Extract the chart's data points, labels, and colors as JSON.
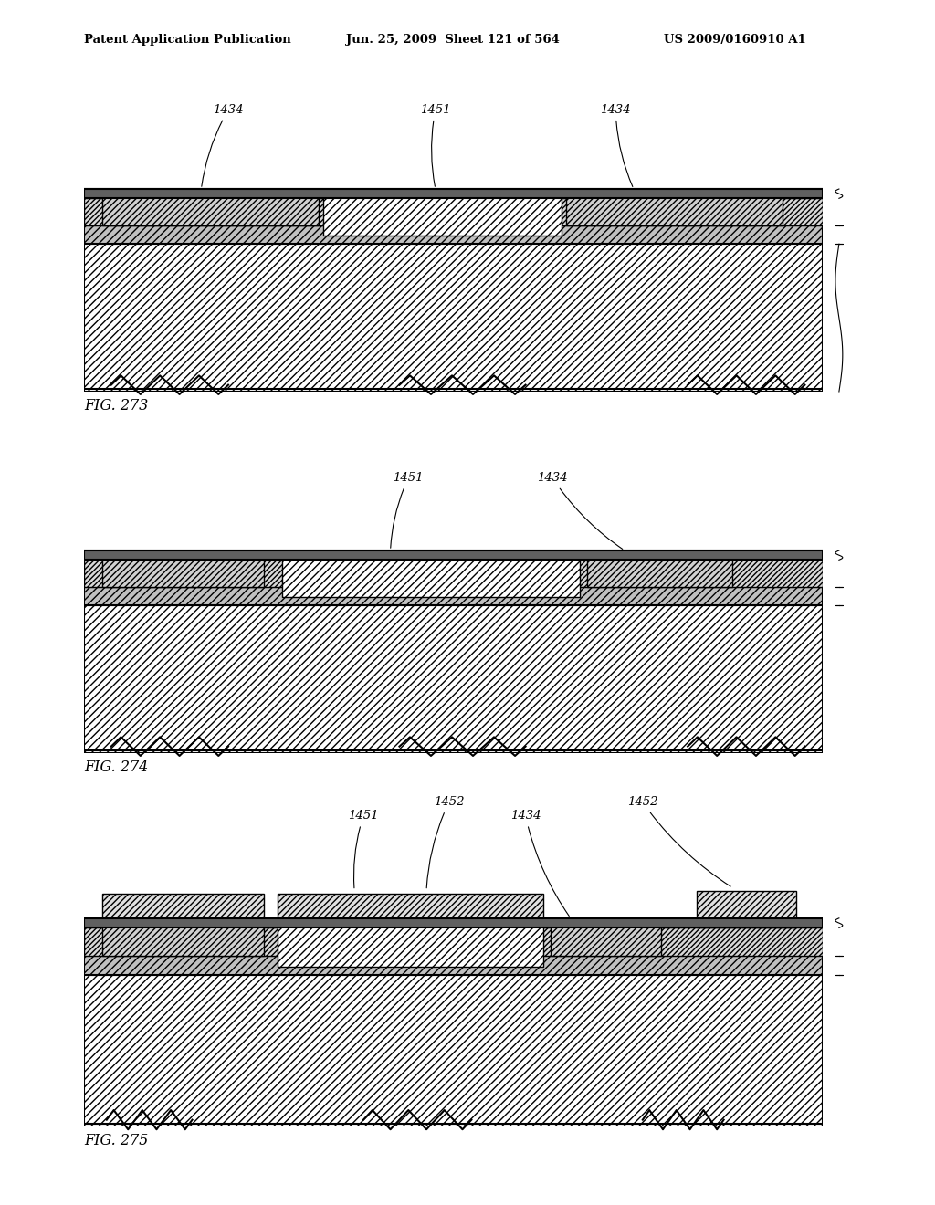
{
  "header_left": "Patent Application Publication",
  "header_mid": "Jun. 25, 2009  Sheet 121 of 564",
  "header_right": "US 2009/0160910 A1",
  "bg_color": "white"
}
